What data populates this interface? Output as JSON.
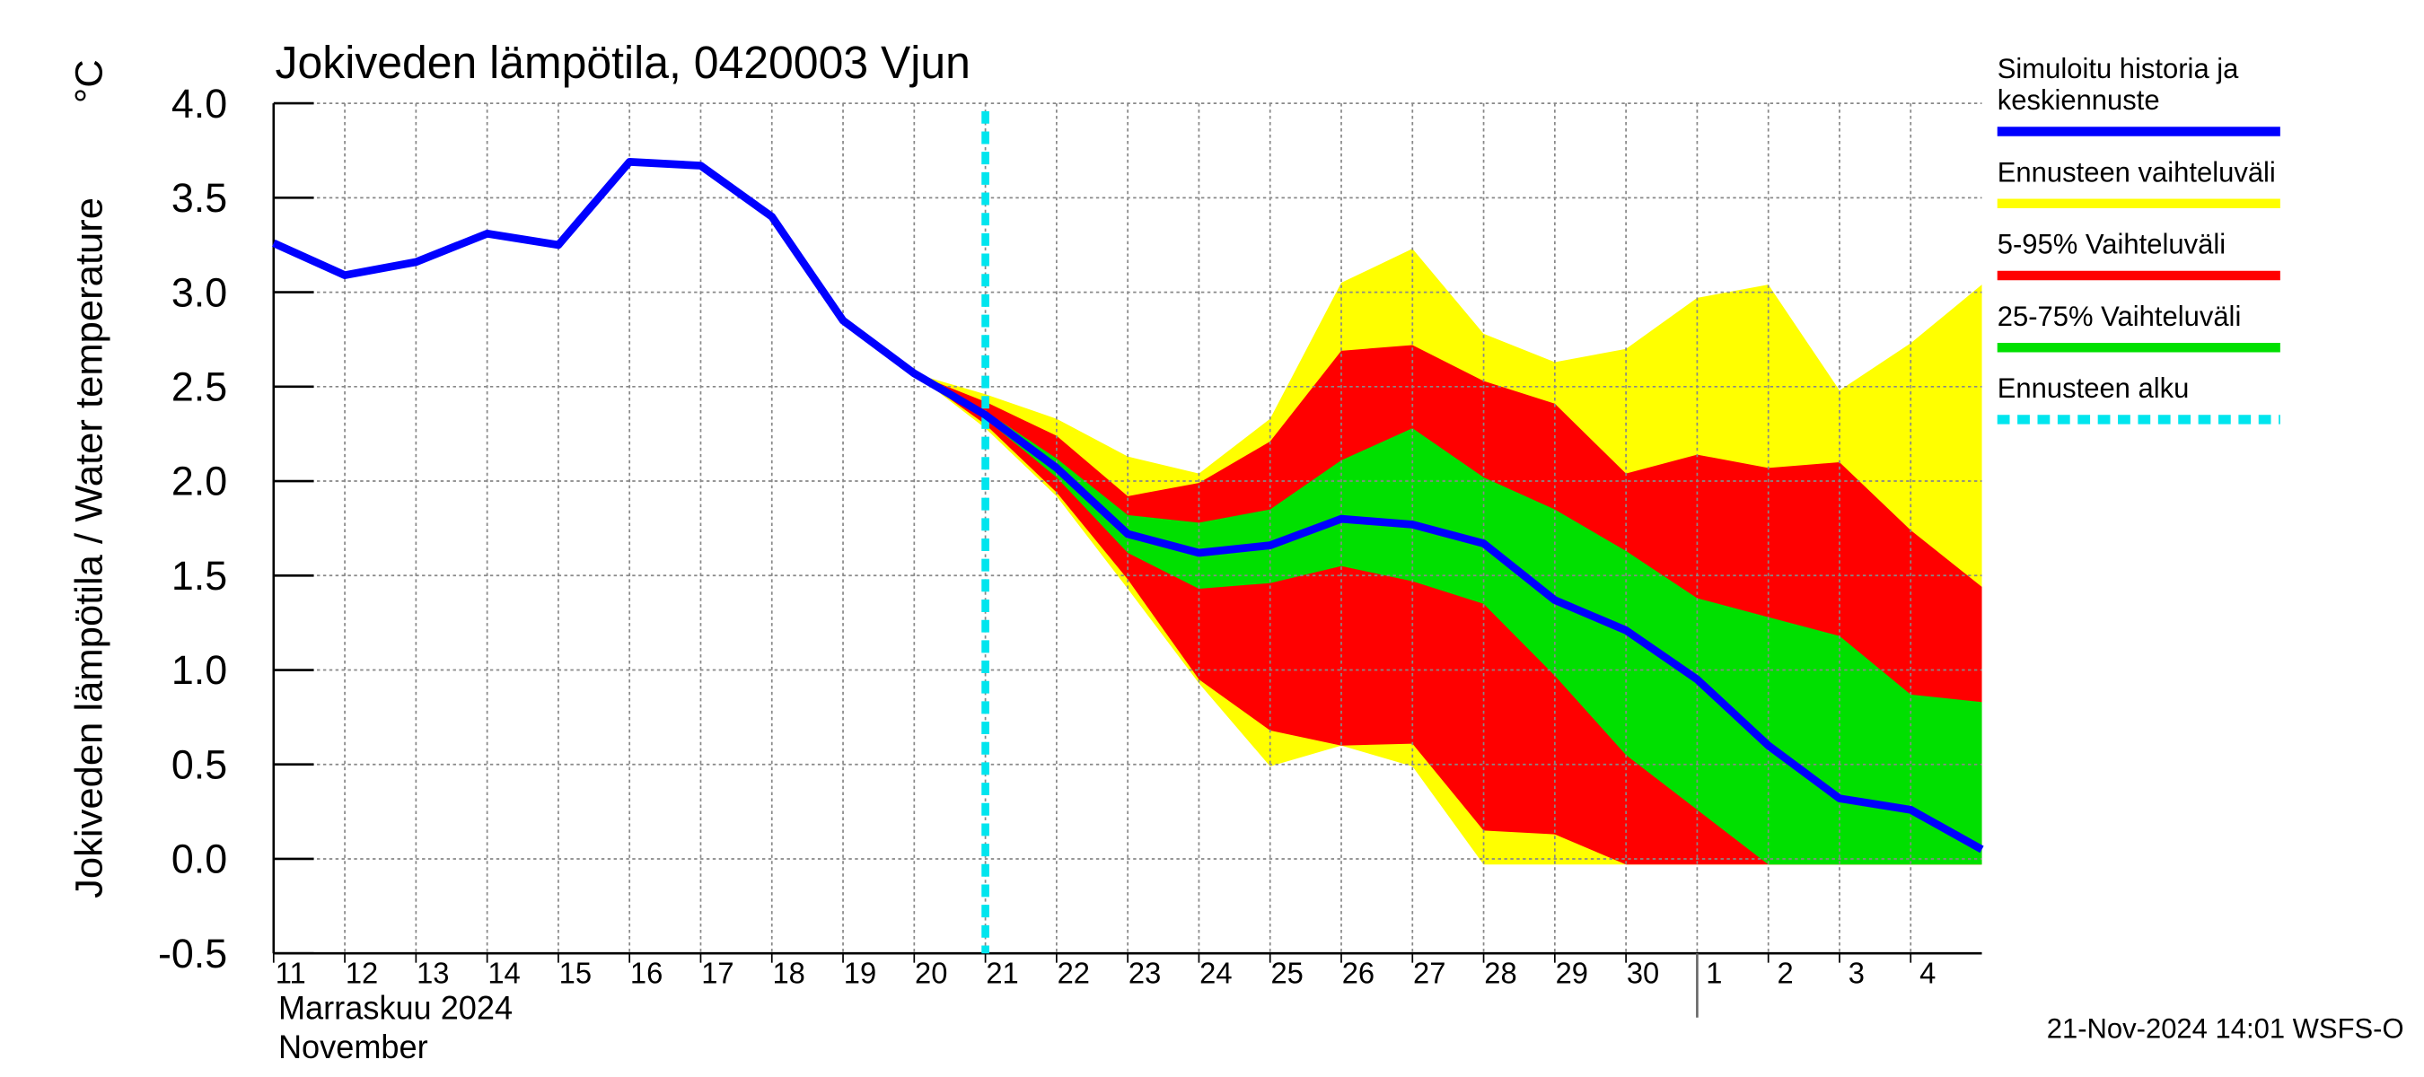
{
  "chart_data": {
    "type": "line",
    "title": "Jokiveden lämpötila, 0420003 Vjun",
    "y_label": "Jokiveden lämpötila / Water temperature",
    "y_unit": "°C",
    "month_label": "Marraskuu 2024",
    "month_label_en": "November",
    "timestamp": "21-Nov-2024 14:01 WSFS-O",
    "grid": true,
    "legend": "right",
    "xlim": [
      "2024-11-11",
      "2024-12-05"
    ],
    "ylim": [
      -0.5,
      4.0
    ],
    "yticks": [
      {
        "value": 4.0,
        "label": "4.0"
      },
      3.5,
      {
        "value": 3.0,
        "label": "3.0"
      },
      2.5,
      {
        "value": 2.0,
        "label": "2.0"
      },
      1.5,
      {
        "value": 1.0,
        "label": "1.0"
      },
      0.5,
      {
        "value": 0.0,
        "label": "0.0"
      },
      -0.5
    ],
    "xticks": [
      {
        "value": "2024-11-11",
        "label": "11"
      },
      {
        "value": "2024-11-12",
        "label": "12"
      },
      {
        "value": "2024-11-13",
        "label": "13"
      },
      {
        "value": "2024-11-14",
        "label": "14"
      },
      {
        "value": "2024-11-15",
        "label": "15"
      },
      {
        "value": "2024-11-16",
        "label": "16"
      },
      {
        "value": "2024-11-17",
        "label": "17"
      },
      {
        "value": "2024-11-18",
        "label": "18"
      },
      {
        "value": "2024-11-19",
        "label": "19"
      },
      {
        "value": "2024-11-20",
        "label": "20"
      },
      {
        "value": "2024-11-21",
        "label": "21"
      },
      {
        "value": "2024-11-22",
        "label": "22"
      },
      {
        "value": "2024-11-23",
        "label": "23"
      },
      {
        "value": "2024-11-24",
        "label": "24"
      },
      {
        "value": "2024-11-25",
        "label": "25"
      },
      {
        "value": "2024-11-26",
        "label": "26"
      },
      {
        "value": "2024-11-27",
        "label": "27"
      },
      {
        "value": "2024-11-28",
        "label": "28"
      },
      {
        "value": "2024-11-29",
        "label": "29"
      },
      {
        "value": "2024-11-30",
        "label": "30"
      },
      {
        "value": "2024-12-01",
        "label": "1"
      },
      {
        "value": "2024-12-02",
        "label": "2"
      },
      {
        "value": "2024-12-03",
        "label": "3"
      },
      {
        "value": "2024-12-04",
        "label": "4"
      }
    ],
    "month_boundary": "2024-12-01",
    "x": [
      "2024-11-11",
      "2024-11-12",
      "2024-11-13",
      "2024-11-14",
      "2024-11-15",
      "2024-11-16",
      "2024-11-17",
      "2024-11-18",
      "2024-11-19",
      "2024-11-20",
      "2024-11-21",
      "2024-11-22",
      "2024-11-23",
      "2024-11-24",
      "2024-11-25",
      "2024-11-26",
      "2024-11-27",
      "2024-11-28",
      "2024-11-29",
      "2024-11-30",
      "2024-12-01",
      "2024-12-02",
      "2024-12-03",
      "2024-12-04",
      "2024-12-05"
    ],
    "series": [
      {
        "name": "Simuloitu historia ja\nkeskiennuste",
        "color": "#0000ff",
        "values": [
          3.26,
          3.09,
          3.16,
          3.31,
          3.25,
          3.69,
          3.67,
          3.4,
          2.85,
          2.57,
          2.35,
          2.07,
          1.72,
          1.62,
          1.66,
          1.8,
          1.77,
          1.67,
          1.37,
          1.21,
          0.95,
          0.6,
          0.32,
          0.26,
          0.05
        ]
      },
      {
        "name": "Ennusteen vaihteluväli",
        "color": "#ffff00",
        "upper": [
          null,
          null,
          null,
          null,
          null,
          null,
          null,
          null,
          null,
          2.57,
          2.46,
          2.33,
          2.13,
          2.04,
          2.33,
          3.05,
          3.23,
          2.78,
          2.63,
          2.7,
          2.97,
          3.04,
          2.48,
          2.73,
          3.04
        ],
        "lower": [
          null,
          null,
          null,
          null,
          null,
          null,
          null,
          null,
          null,
          2.57,
          2.28,
          1.92,
          1.43,
          0.93,
          0.49,
          0.6,
          0.49,
          -0.03,
          -0.03,
          -0.03,
          -0.03,
          -0.03,
          -0.03,
          -0.03,
          -0.03
        ]
      },
      {
        "name": "5-95% Vaihteluväli",
        "color": "#ff0000",
        "upper": [
          null,
          null,
          null,
          null,
          null,
          null,
          null,
          null,
          null,
          2.57,
          2.42,
          2.24,
          1.92,
          1.99,
          2.21,
          2.69,
          2.72,
          2.53,
          2.41,
          2.04,
          2.14,
          2.07,
          2.1,
          1.74,
          1.44
        ],
        "lower": [
          null,
          null,
          null,
          null,
          null,
          null,
          null,
          null,
          null,
          2.57,
          2.3,
          1.94,
          1.48,
          0.95,
          0.68,
          0.6,
          0.61,
          0.15,
          0.13,
          -0.03,
          -0.03,
          -0.03,
          -0.03,
          -0.03,
          -0.03
        ]
      },
      {
        "name": "25-75% Vaihteluväli",
        "color": "#00e000",
        "upper": [
          null,
          null,
          null,
          null,
          null,
          null,
          null,
          null,
          null,
          2.57,
          2.37,
          2.12,
          1.82,
          1.78,
          1.85,
          2.11,
          2.28,
          2.02,
          1.85,
          1.63,
          1.38,
          1.28,
          1.18,
          0.87,
          0.83
        ],
        "lower": [
          null,
          null,
          null,
          null,
          null,
          null,
          null,
          null,
          null,
          2.57,
          2.33,
          2.02,
          1.62,
          1.43,
          1.46,
          1.55,
          1.47,
          1.35,
          0.97,
          0.55,
          0.26,
          -0.03,
          -0.03,
          -0.03,
          -0.03
        ]
      }
    ],
    "forecast_start": {
      "name": "Ennusteen alku",
      "x": "2024-11-21",
      "color": "#00e5ee"
    }
  }
}
